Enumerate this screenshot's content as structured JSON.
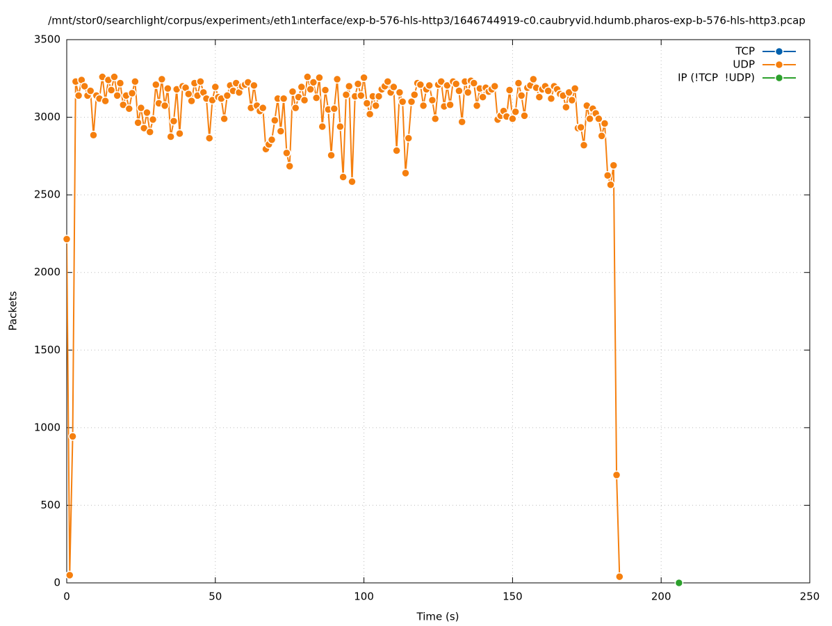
{
  "chart_data": {
    "type": "line",
    "title": "/mnt/stor0/searchlight/corpus/experiment₃/eth1ᵢnterface/exp-b-576-hls-http3/1646744919-c0.caubryvid.hdumb.pharos-exp-b-576-hls-http3.pcap",
    "xlabel": "Time (s)",
    "ylabel": "Packets",
    "xlim": [
      0,
      250
    ],
    "xticks": [
      0,
      50,
      100,
      150,
      200,
      250
    ],
    "ylim": [
      0,
      3500
    ],
    "yticks": [
      0,
      500,
      1000,
      1500,
      2000,
      2500,
      3000,
      3500
    ],
    "grid": true,
    "legend": "top-right",
    "series": [
      {
        "name": "TCP",
        "color": "#0060ad",
        "x": [],
        "values": []
      },
      {
        "name": "UDP",
        "color": "#f57f0e",
        "x": [
          0,
          1,
          2,
          3,
          4,
          5,
          6,
          7,
          8,
          9,
          10,
          11,
          12,
          13,
          14,
          15,
          16,
          17,
          18,
          19,
          20,
          21,
          22,
          23,
          24,
          25,
          26,
          27,
          28,
          29,
          30,
          31,
          32,
          33,
          34,
          35,
          36,
          37,
          38,
          39,
          40,
          41,
          42,
          43,
          44,
          45,
          46,
          47,
          48,
          49,
          50,
          51,
          52,
          53,
          54,
          55,
          56,
          57,
          58,
          59,
          60,
          61,
          62,
          63,
          64,
          65,
          66,
          67,
          68,
          69,
          70,
          71,
          72,
          73,
          74,
          75,
          76,
          77,
          78,
          79,
          80,
          81,
          82,
          83,
          84,
          85,
          86,
          87,
          88,
          89,
          90,
          91,
          92,
          93,
          94,
          95,
          96,
          97,
          98,
          99,
          100,
          101,
          102,
          103,
          104,
          105,
          106,
          107,
          108,
          109,
          110,
          111,
          112,
          113,
          114,
          115,
          116,
          117,
          118,
          119,
          120,
          121,
          122,
          123,
          124,
          125,
          126,
          127,
          128,
          129,
          130,
          131,
          132,
          133,
          134,
          135,
          136,
          137,
          138,
          139,
          140,
          141,
          142,
          143,
          144,
          145,
          146,
          147,
          148,
          149,
          150,
          151,
          152,
          153,
          154,
          155,
          156,
          157,
          158,
          159,
          160,
          161,
          162,
          163,
          164,
          165,
          166,
          167,
          168,
          169,
          170,
          171,
          172,
          173,
          174,
          175,
          176,
          177,
          178,
          179,
          180,
          181,
          182,
          183,
          184,
          185,
          186
        ],
        "values": [
          2215,
          50,
          944,
          3230,
          3140,
          3240,
          3200,
          3140,
          3170,
          2885,
          3140,
          3120,
          3260,
          3105,
          3240,
          3175,
          3260,
          3140,
          3220,
          3080,
          3140,
          3055,
          3155,
          3230,
          2965,
          3060,
          2930,
          3030,
          2905,
          2985,
          3210,
          3090,
          3245,
          3075,
          3185,
          2875,
          2975,
          3180,
          2895,
          3200,
          3190,
          3150,
          3105,
          3220,
          3140,
          3230,
          3160,
          3120,
          2865,
          3110,
          3195,
          3130,
          3120,
          2990,
          3140,
          3205,
          3170,
          3220,
          3160,
          3200,
          3210,
          3225,
          3060,
          3205,
          3075,
          3040,
          3060,
          2795,
          2825,
          2855,
          2980,
          3120,
          2910,
          3120,
          2770,
          2685,
          3165,
          3060,
          3130,
          3195,
          3110,
          3260,
          3180,
          3225,
          3125,
          3255,
          2940,
          3175,
          3050,
          2755,
          3055,
          3245,
          2940,
          2615,
          3145,
          3200,
          2585,
          3135,
          3215,
          3140,
          3255,
          3090,
          3020,
          3135,
          3075,
          3135,
          3180,
          3200,
          3230,
          3160,
          3195,
          2785,
          3160,
          3100,
          2640,
          2865,
          3100,
          3145,
          3220,
          3210,
          3075,
          3180,
          3205,
          3110,
          2990,
          3210,
          3230,
          3070,
          3205,
          3080,
          3230,
          3215,
          3170,
          2970,
          3230,
          3160,
          3235,
          3220,
          3075,
          3185,
          3130,
          3190,
          3165,
          3180,
          3200,
          2985,
          3010,
          3040,
          3005,
          3175,
          2990,
          3035,
          3220,
          3140,
          3010,
          3190,
          3205,
          3245,
          3190,
          3130,
          3180,
          3200,
          3170,
          3120,
          3200,
          3180,
          3150,
          3140,
          3065,
          3160,
          3110,
          3185,
          2930,
          2935,
          2820,
          3075,
          2990,
          3055,
          3025,
          2990,
          2880,
          2960,
          2625,
          2565,
          2690,
          695,
          40
        ]
      },
      {
        "name": "IP (!TCP  !UDP)",
        "color": "#2ca02c",
        "x": [
          206
        ],
        "values": [
          0
        ]
      }
    ]
  }
}
